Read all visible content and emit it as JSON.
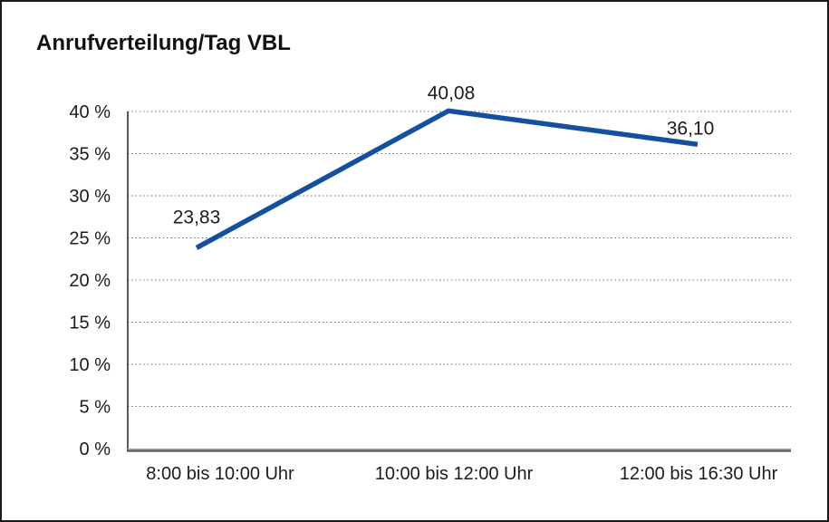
{
  "chart_data": {
    "type": "line",
    "title": "Anrufverteilung/Tag VBL",
    "categories": [
      "8:00 bis 10:00 Uhr",
      "10:00 bis 12:00 Uhr",
      "12:00 bis 16:30 Uhr"
    ],
    "series": [
      {
        "name": "Anrufverteilung",
        "values": [
          23.83,
          40.08,
          36.1
        ],
        "value_labels": [
          "23,83",
          "40,08",
          "36,10"
        ]
      }
    ],
    "xlabel": "",
    "ylabel": "",
    "ylim": [
      0,
      40
    ],
    "y_tick_step": 5,
    "y_tick_labels": [
      "0 %",
      "5 %",
      "10 %",
      "15 %",
      "20 %",
      "25 %",
      "30 %",
      "35 %",
      "40 %"
    ],
    "grid": "horizontal-dotted",
    "legend_position": "none",
    "colors": {
      "line": "#14509F",
      "text": "#1c1c1c",
      "gridline": "#6e6e6e",
      "axis": "#4f4f4f",
      "frame_border": "#1a1a1a",
      "background": "#ffffff"
    }
  }
}
